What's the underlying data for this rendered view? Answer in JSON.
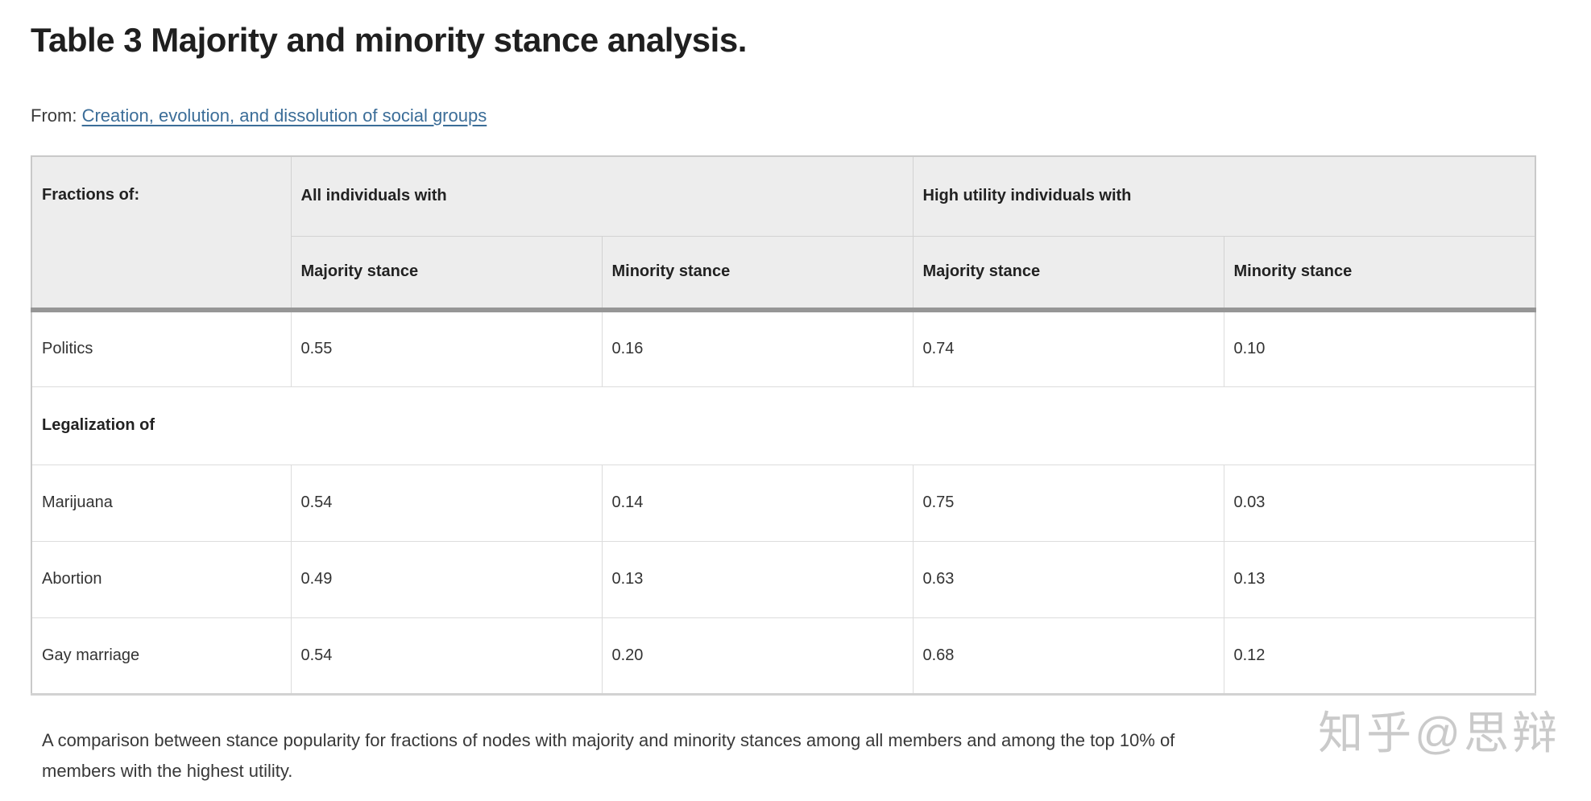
{
  "title": "Table 3 Majority and minority stance analysis.",
  "from": {
    "label": "From:",
    "link_text": "Creation, evolution, and dissolution of social groups"
  },
  "table": {
    "corner_header": "Fractions of:",
    "group_headers": [
      "All individuals with",
      "High utility individuals with"
    ],
    "sub_headers": [
      "Majority stance",
      "Minority stance",
      "Majority stance",
      "Minority stance"
    ],
    "rows": [
      {
        "label": "Politics",
        "values": [
          "0.55",
          "0.16",
          "0.74",
          "0.10"
        ]
      },
      {
        "label": "Legalization of",
        "section": true
      },
      {
        "label": "Marijuana",
        "values": [
          "0.54",
          "0.14",
          "0.75",
          "0.03"
        ]
      },
      {
        "label": "Abortion",
        "values": [
          "0.49",
          "0.13",
          "0.63",
          "0.13"
        ]
      },
      {
        "label": "Gay marriage",
        "values": [
          "0.54",
          "0.20",
          "0.68",
          "0.12"
        ]
      }
    ]
  },
  "caption": {
    "line1": "A comparison between stance popularity for fractions of nodes with majority and minority stances among all members and among the top 10% of",
    "line2": "members with the highest utility."
  },
  "watermark": "知乎@思辩",
  "colors": {
    "header_background": "#ededed",
    "thick_divider": "#969696",
    "cell_border": "#dcdcdc",
    "link": "#3b6d98",
    "title_text": "#1f1f1f",
    "watermark_text": "#c5c5c5"
  }
}
